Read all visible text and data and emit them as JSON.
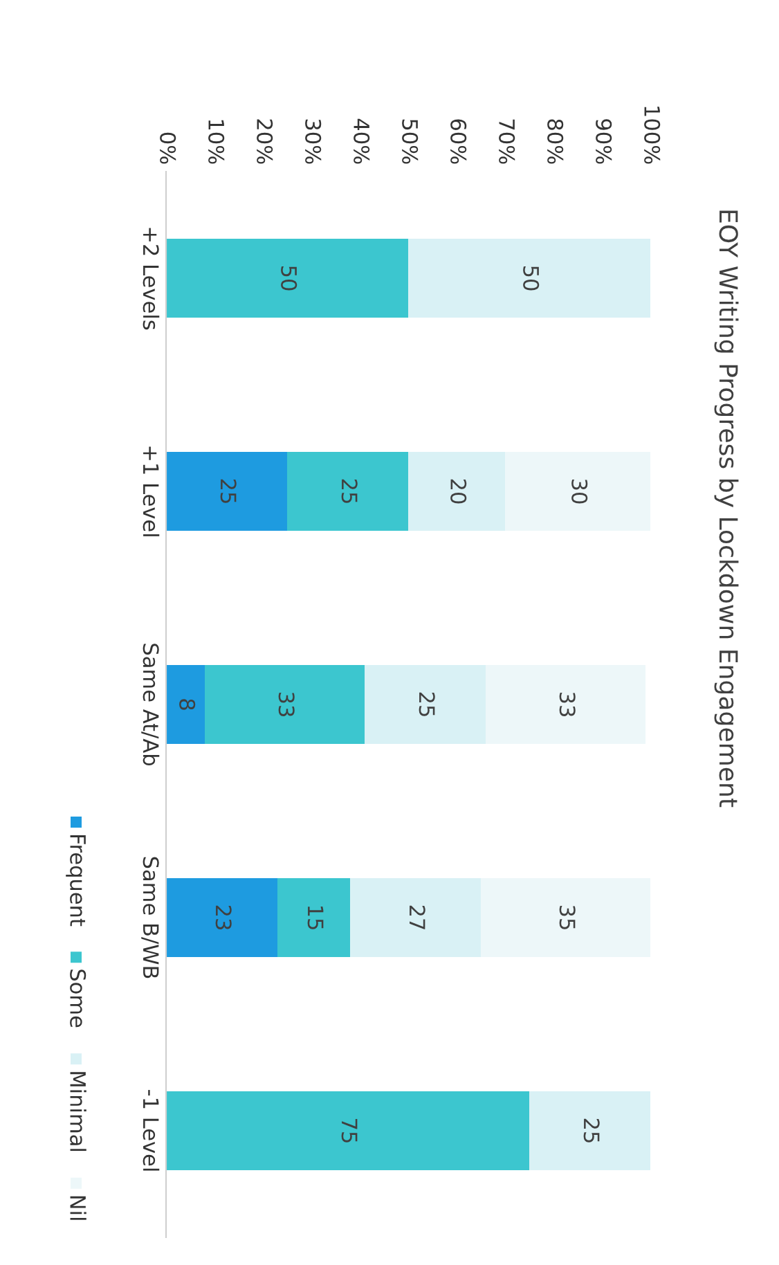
{
  "chart_data": {
    "type": "bar",
    "orientation": "horizontal",
    "stacked": true,
    "title": "EOY Writing Progress by Lockdown Engagement",
    "categories": [
      "+2 Levels",
      "+1 Level",
      "Same At/Ab",
      "Same B/WB",
      "-1 Level"
    ],
    "series": [
      {
        "name": "Frequent",
        "color": "#1e9be0",
        "values": [
          null,
          25,
          8,
          23,
          null
        ]
      },
      {
        "name": "Some",
        "color": "#3cc6cf",
        "values": [
          50,
          25,
          33,
          15,
          75
        ]
      },
      {
        "name": "Minimal",
        "color": "#d9f1f5",
        "values": [
          50,
          20,
          25,
          27,
          25
        ]
      },
      {
        "name": "Nil",
        "color": "#edf7f9",
        "values": [
          null,
          30,
          33,
          35,
          null
        ]
      }
    ],
    "xlim": [
      0,
      100
    ],
    "xticks": [
      {
        "value": 0,
        "label": "0%"
      },
      {
        "value": 10,
        "label": "10%"
      },
      {
        "value": 20,
        "label": "20%"
      },
      {
        "value": 30,
        "label": "30%"
      },
      {
        "value": 40,
        "label": "40%"
      },
      {
        "value": 50,
        "label": "50%"
      },
      {
        "value": 60,
        "label": "60%"
      },
      {
        "value": 70,
        "label": "70%"
      },
      {
        "value": 80,
        "label": "80%"
      },
      {
        "value": 90,
        "label": "90%"
      },
      {
        "value": 100,
        "label": "100%"
      }
    ],
    "data_labels": true,
    "legend": "left",
    "grid": false
  }
}
